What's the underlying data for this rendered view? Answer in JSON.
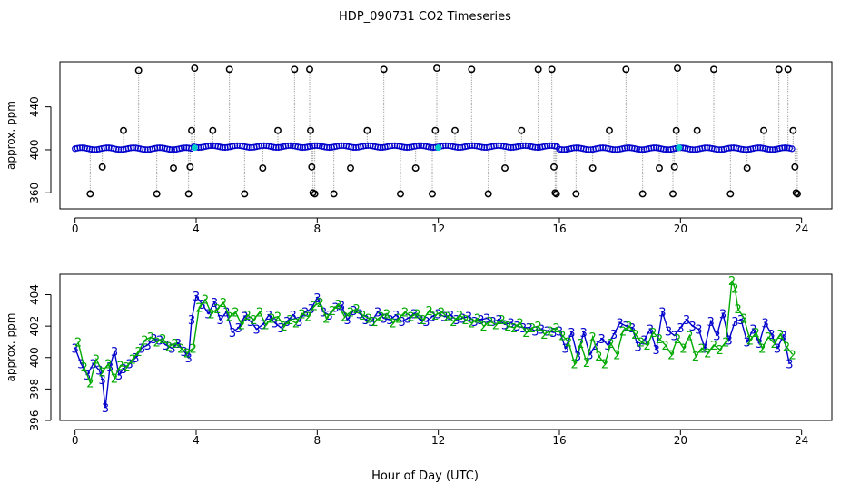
{
  "title": "HDP_090731  CO2 Timeseries",
  "xlabel": "Hour of Day (UTC)",
  "colors": {
    "axis": "#000000",
    "series_blue": "#0000cc",
    "series_green": "#00aa00",
    "cyan": "#00cccc",
    "outlier_line": "#888888"
  },
  "chart_data": [
    {
      "type": "scatter",
      "panel": "top",
      "ylabel": "approx. ppm",
      "xlim": [
        -0.5,
        25
      ],
      "ylim": [
        345,
        482
      ],
      "xticks": [
        0,
        4,
        8,
        12,
        16,
        20,
        24
      ],
      "yticks": [
        360,
        400,
        440
      ],
      "grid": false,
      "reference_level": 401,
      "series": [
        {
          "marker": "open-circle-black",
          "drop_line": true,
          "x": [
            0.5,
            0.9,
            1.6,
            2.1,
            2.7,
            3.25,
            3.75,
            3.8,
            3.85,
            3.95,
            4.55,
            5.1,
            5.6,
            6.2,
            6.7,
            7.25,
            7.75,
            7.78,
            7.82,
            7.86,
            7.92,
            8.55,
            9.1,
            9.65,
            10.2,
            10.75,
            11.25,
            11.8,
            11.9,
            11.95,
            12.55,
            13.1,
            13.65,
            14.2,
            14.75,
            15.3,
            15.75,
            15.82,
            15.86,
            15.9,
            16.55,
            17.1,
            17.65,
            18.2,
            18.75,
            19.3,
            19.75,
            19.8,
            19.86,
            19.9,
            20.55,
            21.1,
            21.65,
            22.2,
            22.75,
            23.25,
            23.55,
            23.72,
            23.78,
            23.82,
            23.86
          ]
        }
      ],
      "outlier_y": [
        359,
        384,
        418,
        474,
        359,
        383,
        359,
        384,
        418,
        476,
        418,
        475,
        359,
        383,
        418,
        475,
        475,
        418,
        384,
        360,
        359,
        359,
        383,
        418,
        475,
        359,
        383,
        359,
        418,
        476,
        418,
        475,
        359,
        383,
        418,
        475,
        475,
        384,
        360,
        359,
        359,
        383,
        418,
        475,
        359,
        383,
        359,
        384,
        418,
        476,
        418,
        475,
        359,
        383,
        418,
        475,
        475,
        418,
        384,
        360,
        359
      ]
    },
    {
      "type": "line",
      "panel": "bottom",
      "ylabel": "approx. ppm",
      "xlim": [
        -0.5,
        25
      ],
      "ylim": [
        396,
        405.3
      ],
      "xticks": [
        0,
        4,
        8,
        12,
        16,
        20,
        24
      ],
      "yticks": [
        396,
        398,
        400,
        402,
        404
      ],
      "grid": false,
      "markers": [
        "3",
        "2"
      ],
      "series": [
        {
          "marker": "3",
          "color": "blue",
          "x": [
            0.0,
            0.2,
            0.4,
            0.6,
            0.8,
            0.9,
            1.0,
            1.15,
            1.3,
            1.45,
            1.6,
            1.8,
            2.0,
            2.2,
            2.4,
            2.6,
            2.8,
            3.0,
            3.2,
            3.4,
            3.6,
            3.75,
            3.85,
            4.0,
            4.2,
            4.4,
            4.6,
            4.8,
            5.0,
            5.2,
            5.4,
            5.6,
            5.8,
            6.0,
            6.2,
            6.4,
            6.6,
            6.8,
            7.0,
            7.2,
            7.4,
            7.6,
            7.8,
            8.0,
            8.2,
            8.4,
            8.6,
            8.8,
            9.0,
            9.2,
            9.4,
            9.6,
            9.8,
            10.0,
            10.2,
            10.4,
            10.6,
            10.8,
            11.0,
            11.2,
            11.4,
            11.6,
            11.8,
            12.0,
            12.2,
            12.4,
            12.6,
            12.8,
            13.0,
            13.2,
            13.4,
            13.6,
            13.8,
            14.0,
            14.2,
            14.4,
            14.6,
            14.8,
            15.0,
            15.2,
            15.4,
            15.6,
            15.8,
            16.0,
            16.2,
            16.4,
            16.6,
            16.8,
            17.0,
            17.2,
            17.4,
            17.6,
            17.8,
            18.0,
            18.2,
            18.4,
            18.6,
            18.8,
            19.0,
            19.2,
            19.4,
            19.6,
            19.8,
            20.0,
            20.2,
            20.4,
            20.6,
            20.8,
            21.0,
            21.2,
            21.4,
            21.6,
            21.8,
            22.0,
            22.2,
            22.4,
            22.6,
            22.8,
            23.0,
            23.2,
            23.4,
            23.6
          ],
          "y": [
            400.6,
            399.6,
            398.9,
            399.6,
            399.2,
            398.6,
            396.8,
            399.4,
            400.4,
            398.9,
            399.3,
            399.6,
            400.0,
            400.6,
            400.8,
            401.2,
            401.1,
            400.8,
            400.6,
            400.9,
            400.4,
            400.0,
            402.4,
            403.9,
            403.4,
            402.8,
            403.5,
            402.4,
            402.9,
            401.6,
            401.9,
            402.6,
            402.3,
            401.8,
            402.1,
            402.7,
            402.2,
            401.9,
            402.3,
            402.7,
            402.3,
            402.9,
            403.1,
            403.8,
            402.9,
            402.7,
            403.2,
            403.3,
            402.4,
            403.0,
            402.8,
            402.4,
            402.3,
            402.9,
            402.5,
            402.4,
            402.7,
            402.3,
            402.5,
            402.8,
            402.4,
            402.3,
            402.6,
            402.8,
            402.6,
            402.7,
            402.4,
            402.5,
            402.6,
            402.3,
            402.4,
            402.5,
            402.3,
            402.4,
            402.1,
            402.2,
            402.0,
            401.9,
            401.9,
            401.7,
            401.8,
            401.7,
            401.6,
            401.7,
            400.6,
            401.6,
            400.1,
            401.6,
            400.2,
            400.8,
            401.2,
            400.8,
            401.5,
            402.2,
            402.0,
            401.9,
            400.7,
            401.1,
            401.8,
            400.5,
            402.9,
            401.7,
            401.4,
            401.9,
            402.4,
            402.0,
            401.8,
            400.6,
            402.3,
            401.4,
            402.8,
            401.1,
            402.3,
            402.4,
            401.0,
            401.8,
            400.9,
            402.2,
            401.5,
            400.6,
            401.4,
            399.6
          ]
        },
        {
          "marker": "2",
          "color": "green",
          "x": [
            0.1,
            0.3,
            0.5,
            0.7,
            0.9,
            1.1,
            1.3,
            1.5,
            1.7,
            1.9,
            2.1,
            2.3,
            2.5,
            2.7,
            2.9,
            3.1,
            3.3,
            3.5,
            3.7,
            3.9,
            4.1,
            4.3,
            4.5,
            4.7,
            4.9,
            5.1,
            5.3,
            5.5,
            5.7,
            5.9,
            6.1,
            6.3,
            6.5,
            6.7,
            6.9,
            7.1,
            7.3,
            7.5,
            7.7,
            7.9,
            8.1,
            8.3,
            8.5,
            8.7,
            8.9,
            9.1,
            9.3,
            9.5,
            9.7,
            9.9,
            10.1,
            10.3,
            10.5,
            10.7,
            10.9,
            11.1,
            11.3,
            11.5,
            11.7,
            11.9,
            12.1,
            12.3,
            12.5,
            12.7,
            12.9,
            13.1,
            13.3,
            13.5,
            13.7,
            13.9,
            14.1,
            14.3,
            14.5,
            14.7,
            14.9,
            15.1,
            15.3,
            15.5,
            15.7,
            15.9,
            16.1,
            16.3,
            16.5,
            16.7,
            16.9,
            17.1,
            17.3,
            17.5,
            17.7,
            17.9,
            18.1,
            18.3,
            18.5,
            18.7,
            18.9,
            19.1,
            19.3,
            19.5,
            19.7,
            19.9,
            20.1,
            20.3,
            20.5,
            20.7,
            20.9,
            21.1,
            21.3,
            21.5,
            21.7,
            21.8,
            21.9,
            22.1,
            22.3,
            22.5,
            22.7,
            22.9,
            23.1,
            23.3,
            23.5,
            23.7
          ],
          "y": [
            401.0,
            399.4,
            398.4,
            399.9,
            399.1,
            399.6,
            398.7,
            399.5,
            399.4,
            399.9,
            400.4,
            401.1,
            401.3,
            401.0,
            401.2,
            400.7,
            400.9,
            400.6,
            400.3,
            400.6,
            403.2,
            403.7,
            402.8,
            403.1,
            403.5,
            402.6,
            402.9,
            402.1,
            402.7,
            402.4,
            402.9,
            402.1,
            402.5,
            402.6,
            402.0,
            402.4,
            402.2,
            402.8,
            402.6,
            403.3,
            403.5,
            402.5,
            403.0,
            403.4,
            402.6,
            402.9,
            403.1,
            402.7,
            402.5,
            402.3,
            402.6,
            402.8,
            402.2,
            402.5,
            402.9,
            402.6,
            402.8,
            402.4,
            403.0,
            402.7,
            402.9,
            402.6,
            402.3,
            402.7,
            402.4,
            402.2,
            402.5,
            402.0,
            402.3,
            402.1,
            402.4,
            402.0,
            401.9,
            402.2,
            401.6,
            401.9,
            402.0,
            401.5,
            401.7,
            401.9,
            401.4,
            401.0,
            399.6,
            400.9,
            399.7,
            401.3,
            400.1,
            399.6,
            400.9,
            400.2,
            401.7,
            402.0,
            401.5,
            401.0,
            400.8,
            401.6,
            401.2,
            400.8,
            400.2,
            401.2,
            400.6,
            401.4,
            400.1,
            400.6,
            400.3,
            400.8,
            400.5,
            401.0,
            404.9,
            404.4,
            403.1,
            402.5,
            401.1,
            401.6,
            400.6,
            401.3,
            400.9,
            401.5,
            400.7,
            400.2
          ]
        }
      ]
    }
  ]
}
